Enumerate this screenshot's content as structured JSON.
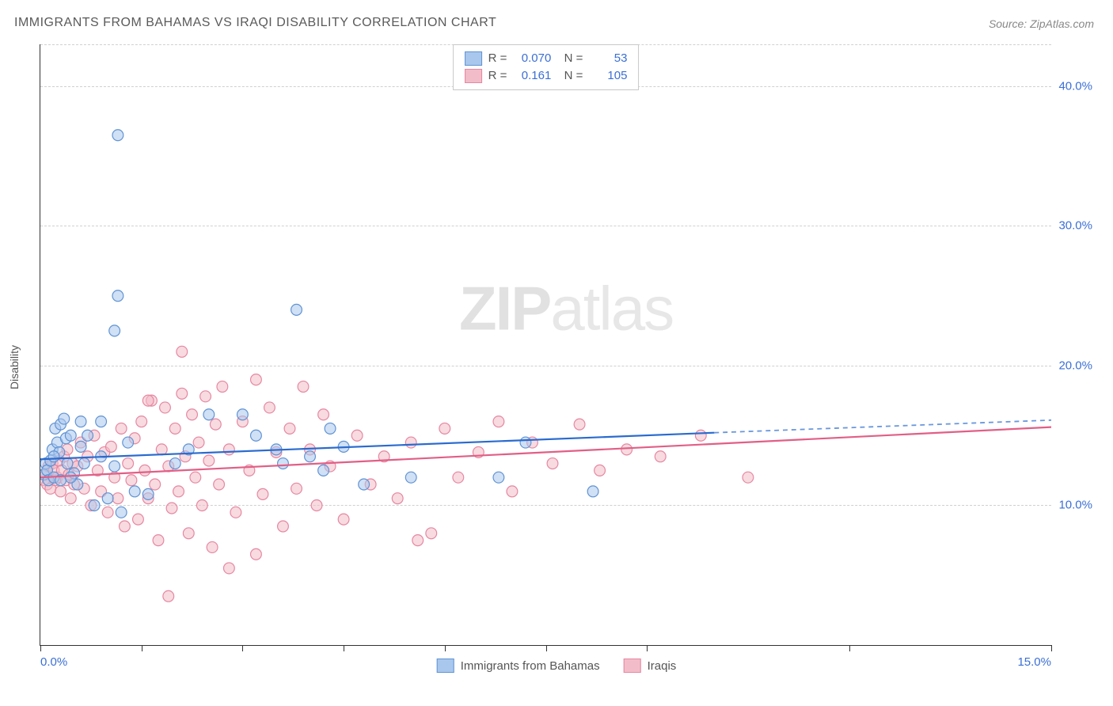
{
  "title": "IMMIGRANTS FROM BAHAMAS VS IRAQI DISABILITY CORRELATION CHART",
  "source": "Source: ZipAtlas.com",
  "ylabel": "Disability",
  "watermark_bold": "ZIP",
  "watermark_rest": "atlas",
  "chart": {
    "type": "scatter",
    "xlim": [
      0,
      15
    ],
    "ylim": [
      0,
      43
    ],
    "xtick_positions": [
      0,
      1.5,
      3,
      4.5,
      6,
      7.5,
      9,
      12,
      15
    ],
    "xtick_labels": {
      "0": "0.0%",
      "15": "15.0%"
    },
    "ytick_positions": [
      10,
      20,
      30,
      40
    ],
    "ytick_labels": [
      "10.0%",
      "20.0%",
      "30.0%",
      "40.0%"
    ],
    "gridline_color": "#d0d0d0",
    "background_color": "#ffffff",
    "axis_label_color": "#3b6fd6",
    "marker_radius": 7,
    "marker_opacity": 0.55,
    "series": [
      {
        "name": "Immigrants from Bahamas",
        "fill": "#a9c7ed",
        "stroke": "#5f93d4",
        "line_color": "#2a6bcf",
        "R": "0.070",
        "N": "53",
        "trend": {
          "x1": 0,
          "y1": 13.3,
          "x2": 10,
          "y2": 15.2,
          "x3": 15,
          "y3": 16.1
        },
        "points": [
          [
            0.05,
            12.2
          ],
          [
            0.08,
            13.0
          ],
          [
            0.1,
            12.5
          ],
          [
            0.12,
            11.8
          ],
          [
            0.15,
            13.2
          ],
          [
            0.18,
            14.0
          ],
          [
            0.2,
            12.0
          ],
          [
            0.22,
            15.5
          ],
          [
            0.25,
            14.5
          ],
          [
            0.28,
            13.8
          ],
          [
            0.3,
            15.8
          ],
          [
            0.35,
            16.2
          ],
          [
            0.38,
            14.8
          ],
          [
            0.4,
            13.0
          ],
          [
            0.45,
            15.0
          ],
          [
            0.5,
            12.3
          ],
          [
            0.55,
            11.5
          ],
          [
            0.6,
            14.2
          ],
          [
            0.7,
            15.0
          ],
          [
            0.8,
            10.0
          ],
          [
            0.9,
            13.5
          ],
          [
            1.0,
            10.5
          ],
          [
            1.1,
            12.8
          ],
          [
            1.2,
            9.5
          ],
          [
            1.3,
            14.5
          ],
          [
            1.1,
            22.5
          ],
          [
            1.15,
            25.0
          ],
          [
            1.15,
            36.5
          ],
          [
            1.4,
            11.0
          ],
          [
            1.6,
            10.8
          ],
          [
            2.0,
            13.0
          ],
          [
            2.5,
            16.5
          ],
          [
            3.2,
            15.0
          ],
          [
            3.5,
            14.0
          ],
          [
            3.8,
            24.0
          ],
          [
            4.0,
            13.5
          ],
          [
            4.2,
            12.5
          ],
          [
            4.5,
            14.2
          ],
          [
            4.8,
            11.5
          ],
          [
            5.5,
            12.0
          ],
          [
            6.8,
            12.0
          ],
          [
            7.2,
            14.5
          ],
          [
            8.2,
            11.0
          ],
          [
            0.6,
            16.0
          ],
          [
            0.3,
            11.8
          ],
          [
            0.45,
            12.0
          ],
          [
            0.9,
            16.0
          ],
          [
            2.2,
            14.0
          ],
          [
            3.0,
            16.5
          ],
          [
            3.6,
            13.0
          ],
          [
            4.3,
            15.5
          ],
          [
            0.2,
            13.5
          ],
          [
            0.65,
            13.0
          ]
        ]
      },
      {
        "name": "Iraqis",
        "fill": "#f3bcc9",
        "stroke": "#e687a0",
        "line_color": "#e15f86",
        "R": "0.161",
        "N": "105",
        "trend": {
          "x1": 0,
          "y1": 12.0,
          "x2": 15,
          "y2": 15.6
        },
        "points": [
          [
            0.05,
            11.8
          ],
          [
            0.08,
            12.2
          ],
          [
            0.1,
            11.5
          ],
          [
            0.12,
            12.8
          ],
          [
            0.15,
            11.2
          ],
          [
            0.18,
            13.0
          ],
          [
            0.2,
            12.5
          ],
          [
            0.22,
            11.8
          ],
          [
            0.25,
            12.0
          ],
          [
            0.28,
            13.2
          ],
          [
            0.3,
            11.0
          ],
          [
            0.32,
            12.5
          ],
          [
            0.35,
            13.5
          ],
          [
            0.38,
            11.8
          ],
          [
            0.4,
            14.0
          ],
          [
            0.42,
            12.2
          ],
          [
            0.45,
            10.5
          ],
          [
            0.48,
            13.0
          ],
          [
            0.5,
            11.5
          ],
          [
            0.55,
            12.8
          ],
          [
            0.6,
            14.5
          ],
          [
            0.65,
            11.2
          ],
          [
            0.7,
            13.5
          ],
          [
            0.75,
            10.0
          ],
          [
            0.8,
            15.0
          ],
          [
            0.85,
            12.5
          ],
          [
            0.9,
            11.0
          ],
          [
            0.95,
            13.8
          ],
          [
            1.0,
            9.5
          ],
          [
            1.05,
            14.2
          ],
          [
            1.1,
            12.0
          ],
          [
            1.15,
            10.5
          ],
          [
            1.2,
            15.5
          ],
          [
            1.25,
            8.5
          ],
          [
            1.3,
            13.0
          ],
          [
            1.35,
            11.8
          ],
          [
            1.4,
            14.8
          ],
          [
            1.45,
            9.0
          ],
          [
            1.5,
            16.0
          ],
          [
            1.55,
            12.5
          ],
          [
            1.6,
            10.5
          ],
          [
            1.65,
            17.5
          ],
          [
            1.7,
            11.5
          ],
          [
            1.75,
            7.5
          ],
          [
            1.8,
            14.0
          ],
          [
            1.85,
            17.0
          ],
          [
            1.9,
            12.8
          ],
          [
            1.95,
            9.8
          ],
          [
            2.0,
            15.5
          ],
          [
            2.05,
            11.0
          ],
          [
            2.1,
            18.0
          ],
          [
            2.15,
            13.5
          ],
          [
            2.2,
            8.0
          ],
          [
            2.25,
            16.5
          ],
          [
            2.3,
            12.0
          ],
          [
            2.35,
            14.5
          ],
          [
            2.4,
            10.0
          ],
          [
            2.45,
            17.8
          ],
          [
            2.5,
            13.2
          ],
          [
            2.55,
            7.0
          ],
          [
            2.6,
            15.8
          ],
          [
            2.65,
            11.5
          ],
          [
            2.7,
            18.5
          ],
          [
            2.8,
            14.0
          ],
          [
            2.9,
            9.5
          ],
          [
            3.0,
            16.0
          ],
          [
            3.1,
            12.5
          ],
          [
            3.2,
            19.0
          ],
          [
            3.3,
            10.8
          ],
          [
            3.4,
            17.0
          ],
          [
            3.5,
            13.8
          ],
          [
            3.6,
            8.5
          ],
          [
            3.7,
            15.5
          ],
          [
            3.8,
            11.2
          ],
          [
            3.9,
            18.5
          ],
          [
            4.0,
            14.0
          ],
          [
            4.1,
            10.0
          ],
          [
            4.2,
            16.5
          ],
          [
            4.3,
            12.8
          ],
          [
            4.5,
            9.0
          ],
          [
            4.7,
            15.0
          ],
          [
            4.9,
            11.5
          ],
          [
            5.1,
            13.5
          ],
          [
            5.3,
            10.5
          ],
          [
            5.5,
            14.5
          ],
          [
            5.8,
            8.0
          ],
          [
            6.0,
            15.5
          ],
          [
            6.2,
            12.0
          ],
          [
            6.5,
            13.8
          ],
          [
            6.8,
            16.0
          ],
          [
            7.0,
            11.0
          ],
          [
            7.3,
            14.5
          ],
          [
            7.6,
            13.0
          ],
          [
            8.0,
            15.8
          ],
          [
            8.3,
            12.5
          ],
          [
            8.7,
            14.0
          ],
          [
            9.2,
            13.5
          ],
          [
            9.8,
            15.0
          ],
          [
            10.5,
            12.0
          ],
          [
            1.9,
            3.5
          ],
          [
            2.1,
            21.0
          ],
          [
            3.2,
            6.5
          ],
          [
            5.6,
            7.5
          ],
          [
            2.8,
            5.5
          ],
          [
            1.6,
            17.5
          ]
        ]
      }
    ]
  },
  "bottom_legend": [
    {
      "label": "Immigrants from Bahamas",
      "fill": "#a9c7ed",
      "stroke": "#5f93d4"
    },
    {
      "label": "Iraqis",
      "fill": "#f3bcc9",
      "stroke": "#e687a0"
    }
  ]
}
